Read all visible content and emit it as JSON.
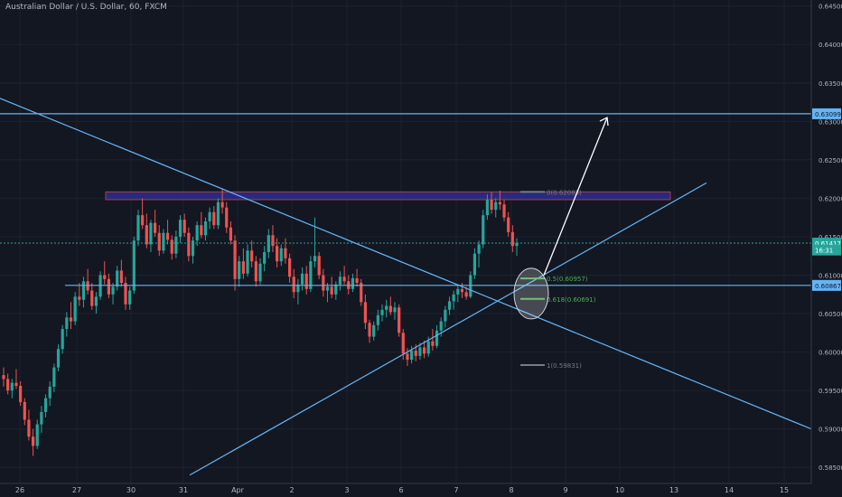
{
  "header": {
    "title": "Australian Dollar / U.S. Dollar, 60, FXCM"
  },
  "chart_data": {
    "type": "candlestick",
    "title": "Australian Dollar / U.S. Dollar, 60, FXCM",
    "ylim": [
      0.5835,
      0.6452
    ],
    "y_ticks": [
      "0.64500",
      "0.64000",
      "0.63500",
      "0.63000",
      "0.62500",
      "0.62000",
      "0.61500",
      "0.61000",
      "0.60500",
      "0.60000",
      "0.59500",
      "0.59000",
      "0.58500"
    ],
    "x_ticks": [
      "26",
      "27",
      "30",
      "31",
      "Apr",
      "2",
      "3",
      "6",
      "7",
      "8",
      "9",
      "10",
      "13",
      "14",
      "15"
    ],
    "price_labels": [
      {
        "text": "0.63099",
        "value": 0.63099,
        "kind": "level",
        "color": "#64b5f6"
      },
      {
        "text": "0.61417",
        "value": 0.61417,
        "kind": "last",
        "color": "#26a69a"
      },
      {
        "text": "16:31",
        "value": 0.61327,
        "kind": "timer",
        "color": "#26a69a"
      },
      {
        "text": "0.60867",
        "value": 0.60867,
        "kind": "level",
        "color": "#64b5f6"
      }
    ],
    "current_price": 0.61417,
    "horizontal_levels": [
      0.63099,
      0.60867
    ],
    "resistance_zone": {
      "from": 0.61982,
      "to": 0.62083,
      "x_from": "Mar 28",
      "x_to": "Apr 12"
    },
    "fib_levels": [
      {
        "ratio": "0",
        "value": 0.62083,
        "label": "0(0.62083)"
      },
      {
        "ratio": "0.5",
        "value": 0.60957,
        "label": "0.5(0.60957)"
      },
      {
        "ratio": "0.618",
        "value": 0.60691,
        "label": "0.618(0.60691)"
      },
      {
        "ratio": "1",
        "value": 0.59831,
        "label": "1(0.59831)"
      }
    ],
    "trendlines": [
      {
        "name": "descending",
        "from": [
          "Mar 25",
          0.633
        ],
        "to": [
          "Apr 15",
          0.59
        ]
      },
      {
        "name": "ascending",
        "from": [
          "Mar 31",
          0.584
        ],
        "to": [
          "Apr 13",
          0.622
        ]
      }
    ],
    "projection_arrow": {
      "from": [
        "Apr 8",
        0.61
      ],
      "to": [
        "Apr 9",
        0.6305
      ]
    },
    "target_ellipse": {
      "center": [
        "Apr 8",
        0.6076
      ]
    },
    "candles": [
      [
        0.597,
        0.598,
        0.5955,
        0.5965
      ],
      [
        0.5965,
        0.5972,
        0.5945,
        0.595
      ],
      [
        0.595,
        0.5965,
        0.594,
        0.596
      ],
      [
        0.596,
        0.5978,
        0.5952,
        0.5956
      ],
      [
        0.5956,
        0.5962,
        0.593,
        0.5935
      ],
      [
        0.5935,
        0.594,
        0.5905,
        0.5912
      ],
      [
        0.5912,
        0.5925,
        0.5885,
        0.589
      ],
      [
        0.589,
        0.59,
        0.5865,
        0.5878
      ],
      [
        0.5878,
        0.5912,
        0.5874,
        0.5906
      ],
      [
        0.5906,
        0.593,
        0.5895,
        0.5922
      ],
      [
        0.5922,
        0.5945,
        0.5915,
        0.594
      ],
      [
        0.594,
        0.5962,
        0.593,
        0.5955
      ],
      [
        0.5955,
        0.5985,
        0.5948,
        0.598
      ],
      [
        0.598,
        0.601,
        0.5975,
        0.6004
      ],
      [
        0.6004,
        0.6035,
        0.5998,
        0.603
      ],
      [
        0.603,
        0.6052,
        0.602,
        0.6045
      ],
      [
        0.6045,
        0.6065,
        0.603,
        0.604
      ],
      [
        0.604,
        0.6078,
        0.6035,
        0.6072
      ],
      [
        0.6072,
        0.609,
        0.606,
        0.6068
      ],
      [
        0.6068,
        0.6098,
        0.6058,
        0.6092
      ],
      [
        0.6092,
        0.6108,
        0.6075,
        0.608
      ],
      [
        0.608,
        0.609,
        0.6055,
        0.606
      ],
      [
        0.606,
        0.6078,
        0.605,
        0.6072
      ],
      [
        0.6072,
        0.6105,
        0.6068,
        0.61
      ],
      [
        0.61,
        0.6118,
        0.6088,
        0.6095
      ],
      [
        0.6095,
        0.6102,
        0.607,
        0.6075
      ],
      [
        0.6075,
        0.609,
        0.6062,
        0.6085
      ],
      [
        0.6085,
        0.6112,
        0.608,
        0.6106
      ],
      [
        0.6106,
        0.612,
        0.6085,
        0.609
      ],
      [
        0.609,
        0.6098,
        0.6055,
        0.6062
      ],
      [
        0.6062,
        0.6085,
        0.6055,
        0.608
      ],
      [
        0.608,
        0.615,
        0.6076,
        0.6145
      ],
      [
        0.6145,
        0.6185,
        0.6138,
        0.6178
      ],
      [
        0.6178,
        0.62,
        0.616,
        0.6165
      ],
      [
        0.6165,
        0.618,
        0.6135,
        0.614
      ],
      [
        0.614,
        0.6172,
        0.613,
        0.6168
      ],
      [
        0.6168,
        0.6185,
        0.615,
        0.6155
      ],
      [
        0.6155,
        0.6165,
        0.6125,
        0.6132
      ],
      [
        0.6132,
        0.616,
        0.6128,
        0.6155
      ],
      [
        0.6155,
        0.6172,
        0.614,
        0.6146
      ],
      [
        0.6146,
        0.6152,
        0.612,
        0.6128
      ],
      [
        0.6128,
        0.6158,
        0.6122,
        0.615
      ],
      [
        0.615,
        0.6178,
        0.6142,
        0.6172
      ],
      [
        0.6172,
        0.618,
        0.615,
        0.6155
      ],
      [
        0.6155,
        0.6162,
        0.6118,
        0.6125
      ],
      [
        0.6125,
        0.615,
        0.6115,
        0.6145
      ],
      [
        0.6145,
        0.617,
        0.6138,
        0.6165
      ],
      [
        0.6165,
        0.6182,
        0.6148,
        0.6152
      ],
      [
        0.6152,
        0.6175,
        0.6145,
        0.617
      ],
      [
        0.617,
        0.6188,
        0.616,
        0.6182
      ],
      [
        0.6182,
        0.619,
        0.616,
        0.6165
      ],
      [
        0.6165,
        0.62,
        0.616,
        0.6195
      ],
      [
        0.6195,
        0.6213,
        0.618,
        0.6188
      ],
      [
        0.6188,
        0.6195,
        0.6155,
        0.6162
      ],
      [
        0.6162,
        0.617,
        0.614,
        0.6145
      ],
      [
        0.6145,
        0.6152,
        0.608,
        0.6095
      ],
      [
        0.6095,
        0.6125,
        0.6085,
        0.6118
      ],
      [
        0.6118,
        0.6135,
        0.6095,
        0.6102
      ],
      [
        0.6102,
        0.614,
        0.6098,
        0.6132
      ],
      [
        0.6132,
        0.6145,
        0.611,
        0.6118
      ],
      [
        0.6118,
        0.6125,
        0.6085,
        0.6092
      ],
      [
        0.6092,
        0.6122,
        0.6088,
        0.6115
      ],
      [
        0.6115,
        0.6138,
        0.6105,
        0.613
      ],
      [
        0.613,
        0.616,
        0.6122,
        0.6152
      ],
      [
        0.6152,
        0.6165,
        0.613,
        0.6138
      ],
      [
        0.6138,
        0.6148,
        0.611,
        0.6118
      ],
      [
        0.6118,
        0.614,
        0.6112,
        0.6135
      ],
      [
        0.6135,
        0.6148,
        0.6115,
        0.6122
      ],
      [
        0.6122,
        0.6128,
        0.609,
        0.6098
      ],
      [
        0.6098,
        0.6108,
        0.607,
        0.6078
      ],
      [
        0.6078,
        0.6095,
        0.6062,
        0.6088
      ],
      [
        0.6088,
        0.611,
        0.608,
        0.6102
      ],
      [
        0.6102,
        0.6112,
        0.6075,
        0.6082
      ],
      [
        0.6082,
        0.6125,
        0.6078,
        0.6118
      ],
      [
        0.6118,
        0.6175,
        0.611,
        0.6125
      ],
      [
        0.6125,
        0.613,
        0.6095,
        0.61
      ],
      [
        0.61,
        0.6108,
        0.6072,
        0.608
      ],
      [
        0.608,
        0.609,
        0.6065,
        0.6085
      ],
      [
        0.6085,
        0.6098,
        0.607,
        0.6075
      ],
      [
        0.6075,
        0.6092,
        0.6068,
        0.6088
      ],
      [
        0.6088,
        0.6105,
        0.608,
        0.6098
      ],
      [
        0.6098,
        0.6112,
        0.6088,
        0.6092
      ],
      [
        0.6092,
        0.61,
        0.6075,
        0.6082
      ],
      [
        0.6082,
        0.6102,
        0.6078,
        0.6096
      ],
      [
        0.6096,
        0.6108,
        0.6085,
        0.609
      ],
      [
        0.609,
        0.6095,
        0.606,
        0.6065
      ],
      [
        0.6065,
        0.6075,
        0.603,
        0.6038
      ],
      [
        0.6038,
        0.6042,
        0.6012,
        0.602
      ],
      [
        0.602,
        0.604,
        0.6015,
        0.6035
      ],
      [
        0.6035,
        0.6055,
        0.6028,
        0.6048
      ],
      [
        0.6048,
        0.6062,
        0.604,
        0.6055
      ],
      [
        0.6055,
        0.6068,
        0.6045,
        0.606
      ],
      [
        0.606,
        0.6072,
        0.6048,
        0.6052
      ],
      [
        0.6052,
        0.6065,
        0.6042,
        0.6058
      ],
      [
        0.6058,
        0.6062,
        0.602,
        0.6025
      ],
      [
        0.6025,
        0.603,
        0.599,
        0.5998
      ],
      [
        0.5998,
        0.6005,
        0.5982,
        0.599
      ],
      [
        0.599,
        0.6008,
        0.5985,
        0.6002
      ],
      [
        0.6002,
        0.601,
        0.5988,
        0.5995
      ],
      [
        0.5995,
        0.6012,
        0.599,
        0.6006
      ],
      [
        0.6006,
        0.6015,
        0.5992,
        0.5998
      ],
      [
        0.5998,
        0.602,
        0.5994,
        0.6014
      ],
      [
        0.6014,
        0.603,
        0.6002,
        0.6008
      ],
      [
        0.6008,
        0.6035,
        0.6005,
        0.6028
      ],
      [
        0.6028,
        0.6045,
        0.602,
        0.604
      ],
      [
        0.604,
        0.606,
        0.6032,
        0.6055
      ],
      [
        0.6055,
        0.6072,
        0.6048,
        0.6066
      ],
      [
        0.6066,
        0.608,
        0.6055,
        0.6075
      ],
      [
        0.6075,
        0.6088,
        0.6065,
        0.6082
      ],
      [
        0.6082,
        0.609,
        0.607,
        0.6078
      ],
      [
        0.6078,
        0.6085,
        0.6068,
        0.6072
      ],
      [
        0.6072,
        0.6105,
        0.607,
        0.61
      ],
      [
        0.61,
        0.6135,
        0.6095,
        0.6128
      ],
      [
        0.6128,
        0.6145,
        0.611,
        0.614
      ],
      [
        0.614,
        0.6185,
        0.6135,
        0.6178
      ],
      [
        0.6178,
        0.6205,
        0.6172,
        0.6198
      ],
      [
        0.6198,
        0.6208,
        0.618,
        0.6185
      ],
      [
        0.6185,
        0.62,
        0.6175,
        0.6195
      ],
      [
        0.6195,
        0.621,
        0.6185,
        0.6192
      ],
      [
        0.6192,
        0.6198,
        0.617,
        0.6175
      ],
      [
        0.6175,
        0.6182,
        0.615,
        0.6156
      ],
      [
        0.6156,
        0.6165,
        0.613,
        0.6138
      ],
      [
        0.6138,
        0.6148,
        0.6125,
        0.6142
      ]
    ]
  }
}
